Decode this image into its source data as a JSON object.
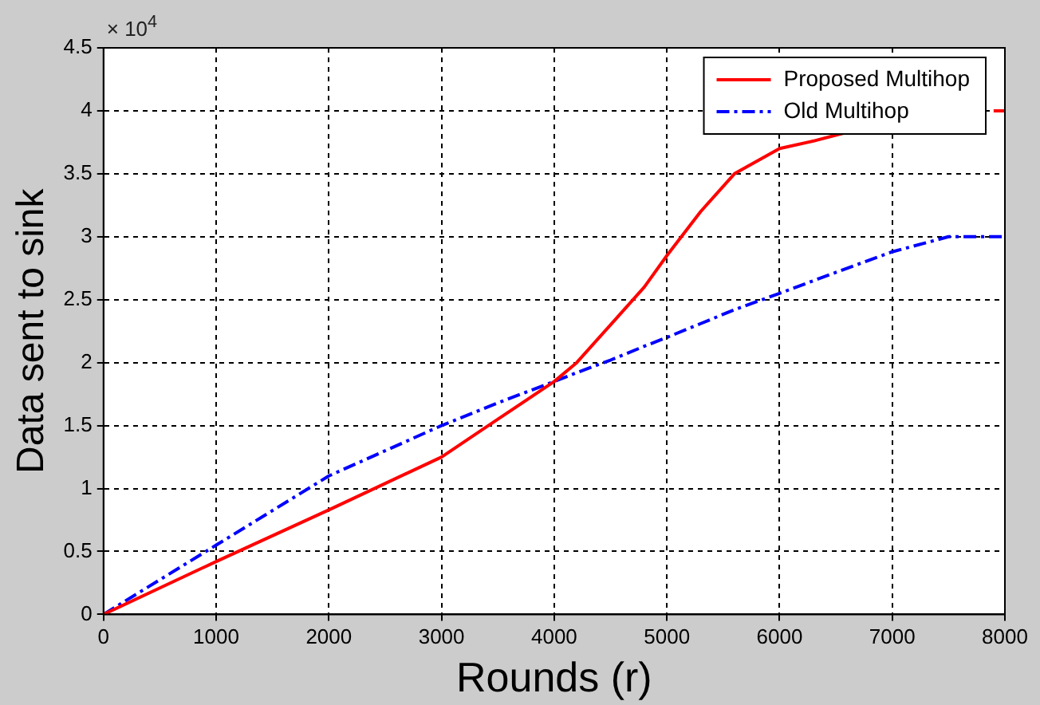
{
  "chart_data": {
    "type": "line",
    "xlabel": "Rounds (r)",
    "ylabel": "Data sent to sink",
    "x": [
      0,
      1000,
      2000,
      3000,
      3500,
      4000,
      4200,
      4500,
      4800,
      5000,
      5300,
      5600,
      6000,
      6300,
      6600,
      7000,
      7500,
      7900,
      8000
    ],
    "series": [
      {
        "name": "Proposed Multihop",
        "color": "#ff0000",
        "line_style": "solid",
        "values": [
          0,
          0.42,
          0.83,
          1.25,
          1.55,
          1.85,
          2.0,
          2.3,
          2.6,
          2.85,
          3.2,
          3.5,
          3.7,
          3.76,
          3.83,
          null,
          null,
          4.0,
          4.0
        ]
      },
      {
        "name": "Old Multihop",
        "color": "#0000ff",
        "line_style": "dashed",
        "values": [
          0,
          0.55,
          1.1,
          1.5,
          1.68,
          1.85,
          1.92,
          2.02,
          2.13,
          2.2,
          2.31,
          2.42,
          2.55,
          2.65,
          2.75,
          2.88,
          3.0,
          3.0,
          3.0
        ]
      }
    ],
    "xlim": [
      0,
      8000
    ],
    "xticks": [
      0,
      1000,
      2000,
      3000,
      4000,
      5000,
      6000,
      7000,
      8000
    ],
    "ylim": [
      0,
      4.5
    ],
    "yticks": [
      0,
      0.5,
      1,
      1.5,
      2,
      2.5,
      3,
      3.5,
      4,
      4.5
    ],
    "annotations": [
      "× 10$^{4}$"
    ],
    "grid": true,
    "legend": "top right",
    "marker": "none"
  }
}
